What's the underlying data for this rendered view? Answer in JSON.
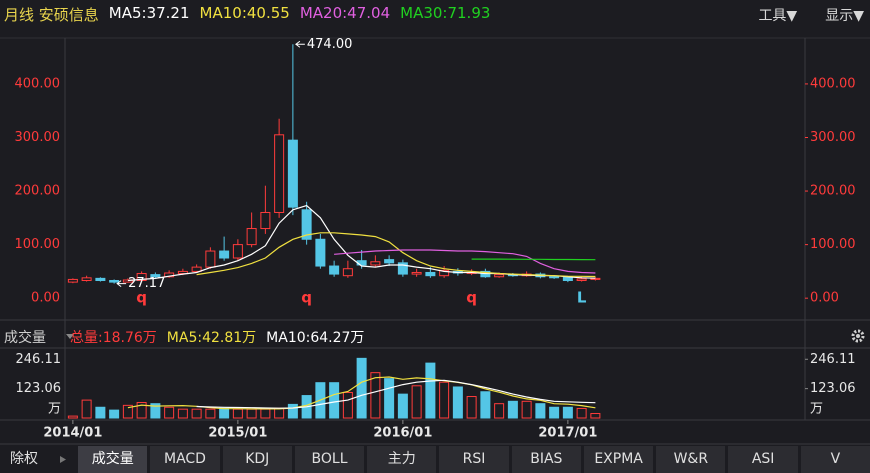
{
  "ui": {
    "menu": [
      "工具▼",
      "显示▼"
    ],
    "adjust": "除权",
    "tabs": [
      "成交量",
      "MACD",
      "KDJ",
      "BOLL",
      "主力",
      "RSI",
      "BIAS",
      "EXPMA",
      "W&R",
      "ASI",
      "V"
    ]
  },
  "chart_data": [
    {
      "type": "candlestick",
      "title": "月线 安硕信息",
      "open": [
        30,
        33,
        37,
        33,
        30,
        33,
        44,
        40,
        46,
        50,
        58,
        88,
        75,
        100,
        130,
        160,
        295,
        165,
        110,
        60,
        42,
        70,
        62,
        72,
        66,
        45,
        48,
        42,
        50,
        47,
        50,
        40,
        44,
        42,
        45,
        40,
        39,
        33,
        35
      ],
      "high": [
        37,
        42,
        39,
        35,
        37,
        50,
        48,
        52,
        55,
        63,
        95,
        115,
        110,
        160,
        210,
        335,
        474,
        180,
        120,
        70,
        70,
        90,
        80,
        80,
        72,
        55,
        58,
        60,
        56,
        54,
        55,
        48,
        47,
        50,
        48,
        43,
        41,
        40,
        39
      ],
      "low": [
        28,
        31,
        31,
        27.17,
        29,
        31,
        37,
        38,
        43,
        47,
        55,
        70,
        70,
        95,
        120,
        150,
        155,
        100,
        55,
        40,
        38,
        55,
        58,
        60,
        40,
        40,
        38,
        38,
        42,
        43,
        38,
        38,
        40,
        40,
        37,
        36,
        30,
        31,
        33
      ],
      "close": [
        35,
        38,
        33,
        30,
        34,
        46,
        40,
        47,
        50,
        58,
        88,
        75,
        100,
        130,
        160,
        305,
        170,
        110,
        60,
        45,
        55,
        62,
        68,
        66,
        45,
        48,
        42,
        52,
        47,
        48,
        40,
        44,
        42,
        45,
        40,
        39,
        33,
        36,
        37
      ],
      "up_color": "#ff3b3b",
      "down_color": "#54c6e6",
      "ma_series": [
        {
          "label": "MA5:37.21",
          "color": "#ffffff",
          "values": [
            null,
            null,
            null,
            null,
            33,
            35,
            37,
            41,
            45,
            48,
            57,
            62,
            70,
            82,
            98,
            140,
            165,
            173,
            150,
            110,
            80,
            60,
            58,
            62,
            62,
            58,
            55,
            50,
            48,
            48,
            46,
            46,
            44,
            43,
            42,
            42,
            40,
            38,
            37.21
          ]
        },
        {
          "label": "MA10:40.55",
          "color": "#f0e040",
          "values": [
            null,
            null,
            null,
            null,
            null,
            null,
            null,
            null,
            null,
            44,
            48,
            52,
            57,
            65,
            75,
            95,
            110,
            118,
            122,
            122,
            120,
            118,
            115,
            105,
            85,
            70,
            60,
            55,
            52,
            50,
            48,
            46,
            45,
            44,
            43,
            42,
            41,
            40.8,
            40.55
          ]
        },
        {
          "label": "MA20:47.04",
          "color": "#e060e0",
          "values": [
            null,
            null,
            null,
            null,
            null,
            null,
            null,
            null,
            null,
            null,
            null,
            null,
            null,
            null,
            null,
            null,
            null,
            null,
            null,
            82,
            84,
            86,
            88,
            89,
            90,
            90,
            90,
            89,
            88,
            88,
            87,
            85,
            83,
            78,
            65,
            55,
            50,
            48,
            47.04
          ]
        },
        {
          "label": "MA30:71.93",
          "color": "#20d020",
          "values": [
            null,
            null,
            null,
            null,
            null,
            null,
            null,
            null,
            null,
            null,
            null,
            null,
            null,
            null,
            null,
            null,
            null,
            null,
            null,
            null,
            null,
            null,
            null,
            null,
            null,
            null,
            null,
            null,
            null,
            73,
            73,
            73,
            72.8,
            72.6,
            72.5,
            72.3,
            72.2,
            72,
            71.93
          ]
        }
      ],
      "annotations": [
        {
          "text": "474.00",
          "value": 474
        },
        {
          "text": "27.17",
          "value": 27.17
        }
      ],
      "signals": [
        null,
        null,
        null,
        null,
        null,
        {
          "text": "q",
          "color": "#ff3b3b"
        },
        null,
        null,
        null,
        null,
        null,
        null,
        null,
        null,
        null,
        null,
        null,
        {
          "text": "q",
          "color": "#ff3b3b"
        },
        null,
        null,
        null,
        null,
        null,
        null,
        null,
        null,
        null,
        null,
        null,
        {
          "text": "q",
          "color": "#ff3b3b"
        },
        null,
        null,
        null,
        null,
        null,
        null,
        null,
        {
          "text": "L",
          "color": "#54c6e6"
        },
        null
      ],
      "ylim": [
        -37,
        482
      ],
      "yticks": [
        {
          "value": 0,
          "label": "0.00"
        },
        {
          "value": 100,
          "label": "100.00"
        },
        {
          "value": 200,
          "label": "200.00"
        },
        {
          "value": 300,
          "label": "300.00"
        },
        {
          "value": 400,
          "label": "400.00"
        }
      ],
      "axis_color": "#ff3b3b"
    },
    {
      "type": "bar",
      "title": "成交量",
      "legend": [
        {
          "label": "总量:18.76万",
          "color": "#ff3b3b"
        },
        {
          "label": "MA5:42.81万",
          "color": "#f0e040"
        },
        {
          "label": "MA10:64.27万",
          "color": "#ffffff"
        }
      ],
      "categories": [
        "2014/01",
        null,
        null,
        null,
        null,
        null,
        null,
        null,
        null,
        null,
        null,
        null,
        "2015/01",
        null,
        null,
        null,
        null,
        null,
        null,
        null,
        null,
        null,
        null,
        null,
        "2016/01",
        null,
        null,
        null,
        null,
        null,
        null,
        null,
        null,
        null,
        null,
        null,
        "2017/01",
        null,
        null
      ],
      "values": [
        8,
        75,
        45,
        33,
        53,
        65,
        60,
        45,
        37,
        37,
        37,
        41,
        37,
        37,
        37,
        41,
        57,
        94,
        148,
        148,
        107,
        250,
        190,
        165,
        100,
        135,
        230,
        150,
        130,
        90,
        110,
        60,
        70,
        70,
        60,
        45,
        45,
        40,
        18.76
      ],
      "ma_series": [
        {
          "color": "#f0e040",
          "values": [
            null,
            null,
            null,
            null,
            43,
            54,
            50,
            51,
            52,
            49,
            43,
            39,
            39,
            38,
            38,
            38,
            42,
            53,
            75,
            98,
            111,
            150,
            169,
            172,
            162,
            168,
            164,
            156,
            149,
            139,
            122,
            108,
            92,
            80,
            74,
            60,
            58,
            52,
            42.81
          ]
        },
        {
          "color": "#ffffff",
          "values": [
            null,
            null,
            null,
            null,
            null,
            null,
            null,
            null,
            null,
            48,
            46,
            45,
            44,
            43,
            42,
            41,
            42,
            47,
            57,
            67,
            75,
            95,
            110,
            125,
            140,
            150,
            155,
            158,
            150,
            140,
            128,
            115,
            100,
            88,
            78,
            70,
            68,
            66,
            64.27
          ]
        }
      ],
      "unit": "万",
      "ylim": [
        0,
        285
      ],
      "yticks": [
        123.06,
        246.11
      ]
    }
  ]
}
